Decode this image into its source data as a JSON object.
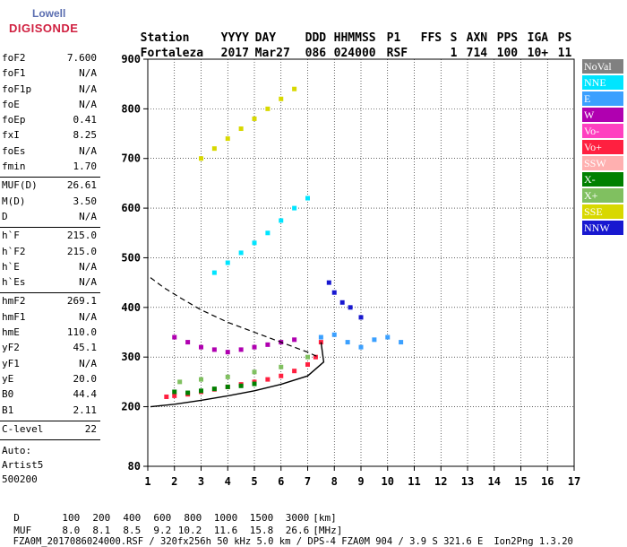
{
  "logo": {
    "line1": "Lowell",
    "line2": "DIGISONDE"
  },
  "header": {
    "labels": [
      "Station",
      "YYYY",
      "DAY",
      "DDD",
      "HHMMSS",
      "P1",
      "FFS",
      "S",
      "AXN",
      "PPS",
      "IGA",
      "PS"
    ],
    "values": [
      "Fortaleza",
      "2017",
      "Mar27",
      "086",
      "024000",
      "RSF",
      "",
      "1",
      "714",
      "100",
      "10+",
      "11"
    ]
  },
  "params_group1": [
    {
      "k": "foF2",
      "v": "7.600"
    },
    {
      "k": "foF1",
      "v": "N/A"
    },
    {
      "k": "foF1p",
      "v": "N/A"
    },
    {
      "k": "foE",
      "v": "N/A"
    },
    {
      "k": "foEp",
      "v": "0.41"
    },
    {
      "k": "fxI",
      "v": "8.25"
    },
    {
      "k": "foEs",
      "v": "N/A"
    },
    {
      "k": "fmin",
      "v": "1.70"
    }
  ],
  "params_group2": [
    {
      "k": "MUF(D)",
      "v": "26.61"
    },
    {
      "k": "M(D)",
      "v": "3.50"
    },
    {
      "k": "D",
      "v": "N/A"
    }
  ],
  "params_group3": [
    {
      "k": "h`F",
      "v": "215.0"
    },
    {
      "k": "h`F2",
      "v": "215.0"
    },
    {
      "k": "h`E",
      "v": "N/A"
    },
    {
      "k": "h`Es",
      "v": "N/A"
    }
  ],
  "params_group4": [
    {
      "k": "hmF2",
      "v": "269.1"
    },
    {
      "k": "hmF1",
      "v": "N/A"
    },
    {
      "k": "hmE",
      "v": "110.0"
    },
    {
      "k": "yF2",
      "v": "45.1"
    },
    {
      "k": "yF1",
      "v": "N/A"
    },
    {
      "k": "yE",
      "v": "20.0"
    },
    {
      "k": "B0",
      "v": "44.4"
    },
    {
      "k": "B1",
      "v": "2.11"
    }
  ],
  "params_group5": [
    {
      "k": "C-level",
      "v": "22"
    }
  ],
  "auto": [
    "Auto:",
    "Artist5",
    "500200"
  ],
  "legend": [
    {
      "label": "NoVal",
      "color": "#808080"
    },
    {
      "label": "NNE",
      "color": "#00e5ff"
    },
    {
      "label": "E",
      "color": "#3ba0ff"
    },
    {
      "label": "W",
      "color": "#b000b0"
    },
    {
      "label": "Vo-",
      "color": "#ff40c0"
    },
    {
      "label": "Vo+",
      "color": "#ff2040"
    },
    {
      "label": "SSW",
      "color": "#ffb0b0"
    },
    {
      "label": "X-",
      "color": "#008000"
    },
    {
      "label": "X+",
      "color": "#80c060"
    },
    {
      "label": "SSE",
      "color": "#d8d800"
    },
    {
      "label": "NNW",
      "color": "#1818d0"
    }
  ],
  "footer": {
    "d_label": "D",
    "d_values": [
      "100",
      "200",
      "400",
      "600",
      "800",
      "1000",
      "1500",
      "3000",
      "[km]"
    ],
    "muf_label": "MUF",
    "muf_values": [
      "8.0",
      "8.1",
      "8.5",
      "9.2",
      "10.2",
      "11.6",
      "15.8",
      "26.6",
      "[MHz]"
    ],
    "info": "FZA0M_2017086024000.RSF / 320fx256h 50 kHz 5.0 km / DPS-4 FZA0M 904 / 3.9 S 321.6 E",
    "version": "Ion2Png 1.3.20"
  },
  "chart_data": {
    "type": "scatter",
    "xlim": [
      1,
      17
    ],
    "ylim": [
      80,
      900
    ],
    "x_ticks": [
      1,
      2,
      3,
      4,
      5,
      6,
      7,
      8,
      9,
      10,
      11,
      12,
      13,
      14,
      15,
      16,
      17
    ],
    "y_ticks": [
      80,
      200,
      300,
      400,
      500,
      600,
      700,
      800,
      900
    ],
    "grid": true,
    "series": [
      {
        "name": "Vo+",
        "x": [
          1.7,
          2.0,
          2.5,
          3.0,
          3.5,
          4.0,
          4.5,
          5.0,
          5.5,
          6.0,
          6.5,
          7.0,
          7.3,
          7.5
        ],
        "y": [
          220,
          222,
          225,
          230,
          235,
          240,
          245,
          250,
          255,
          262,
          272,
          285,
          300,
          330
        ]
      },
      {
        "name": "W",
        "x": [
          2.0,
          2.5,
          3.0,
          3.5,
          4.0,
          4.5,
          5.0,
          5.5,
          6.0,
          6.5
        ],
        "y": [
          340,
          330,
          320,
          315,
          310,
          315,
          320,
          325,
          330,
          335
        ]
      },
      {
        "name": "E",
        "x": [
          7.5,
          8.0,
          8.5,
          9.0,
          9.5,
          10.0,
          10.5
        ],
        "y": [
          340,
          345,
          330,
          320,
          335,
          340,
          330
        ]
      },
      {
        "name": "NNE",
        "x": [
          3.5,
          4.0,
          4.5,
          5.0,
          5.5,
          6.0,
          6.5,
          7.0
        ],
        "y": [
          470,
          490,
          510,
          530,
          550,
          575,
          600,
          620
        ]
      },
      {
        "name": "SSE",
        "x": [
          3.0,
          3.5,
          4.0,
          4.5,
          5.0,
          5.5,
          6.0,
          6.5
        ],
        "y": [
          700,
          720,
          740,
          760,
          780,
          800,
          820,
          840
        ]
      },
      {
        "name": "NNW",
        "x": [
          7.8,
          8.0,
          8.3,
          8.6,
          9.0
        ],
        "y": [
          450,
          430,
          410,
          400,
          380
        ]
      },
      {
        "name": "X-",
        "x": [
          2.0,
          2.5,
          3.0,
          3.5,
          4.0,
          4.5,
          5.0
        ],
        "y": [
          230,
          228,
          232,
          236,
          240,
          242,
          246
        ]
      },
      {
        "name": "X+",
        "x": [
          2.2,
          3.0,
          4.0,
          5.0,
          6.0,
          7.0
        ],
        "y": [
          250,
          255,
          260,
          270,
          280,
          300
        ]
      }
    ],
    "profile": {
      "x": [
        1.1,
        2.0,
        3.0,
        4.0,
        5.0,
        6.0,
        7.0,
        7.6,
        7.5
      ],
      "y": [
        200,
        205,
        213,
        222,
        232,
        245,
        262,
        290,
        330
      ]
    },
    "dashed": {
      "x": [
        1.1,
        1.6,
        2.2,
        3.0,
        4.0,
        5.0,
        6.0,
        7.0,
        7.4
      ],
      "y": [
        460,
        440,
        420,
        395,
        370,
        350,
        330,
        310,
        300
      ]
    }
  }
}
